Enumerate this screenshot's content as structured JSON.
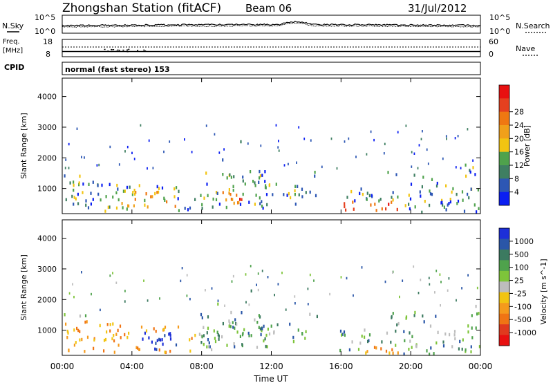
{
  "header": {
    "station": "Zhongshan Station (fitACF)",
    "beam": "Beam 06",
    "date": "31/Jul/2012"
  },
  "panels": {
    "nsky": {
      "label": "N.Sky",
      "ticks": [
        "10^5",
        "10^0"
      ]
    },
    "nsearch": {
      "label": "N.Search",
      "ticks": [
        "10^5",
        "10^0"
      ]
    },
    "freq": {
      "label_top": "Freq.",
      "label_unit": "[MHz]",
      "ticks": [
        "18",
        "8"
      ]
    },
    "nave": {
      "label": "Nave",
      "ticks": [
        "60",
        "0"
      ]
    },
    "cpid": {
      "label": "CPID",
      "value": "normal (fast stereo) 153"
    }
  },
  "chart_data": [
    {
      "type": "heatmap",
      "quantity": "power",
      "ylabel": "Slant Range [km]",
      "xlabel": "Time UT",
      "x_ticks": [
        "00:00",
        "04:00",
        "08:00",
        "12:00",
        "16:00",
        "20:00",
        "00:00"
      ],
      "y_ticks": [
        1000,
        2000,
        3000,
        4000
      ],
      "ylim": [
        180,
        4600
      ],
      "colorbar": {
        "label": "Power [dB]",
        "ticks": [
          "4",
          "8",
          "12",
          "16",
          "20",
          "24",
          "28"
        ],
        "colors": [
          "#0b1ff2",
          "#2d57b4",
          "#3f7f62",
          "#4fa24c",
          "#f2c412",
          "#f0a01a",
          "#ef7812",
          "#e5401f",
          "#e81010"
        ]
      }
    },
    {
      "type": "heatmap",
      "quantity": "velocity",
      "ylabel": "Slant Range [km]",
      "xlabel": "Time UT",
      "x_ticks": [
        "00:00",
        "04:00",
        "08:00",
        "12:00",
        "16:00",
        "20:00",
        "00:00"
      ],
      "y_ticks": [
        1000,
        2000,
        3000,
        4000
      ],
      "ylim": [
        180,
        4600
      ],
      "colorbar": {
        "label": "Velocity [m s^-1]",
        "ticks": [
          "1000",
          "500",
          "100",
          "25",
          "-25",
          "-100",
          "-500",
          "-1000"
        ],
        "colors": [
          "#1d2fd8",
          "#2a56a8",
          "#3c7a60",
          "#4fa24c",
          "#7ec43a",
          "#bdbdbd",
          "#f2c412",
          "#f59a1c",
          "#f07414",
          "#e03a1e",
          "#e81010"
        ]
      }
    }
  ],
  "time_axis_label": "Time UT"
}
